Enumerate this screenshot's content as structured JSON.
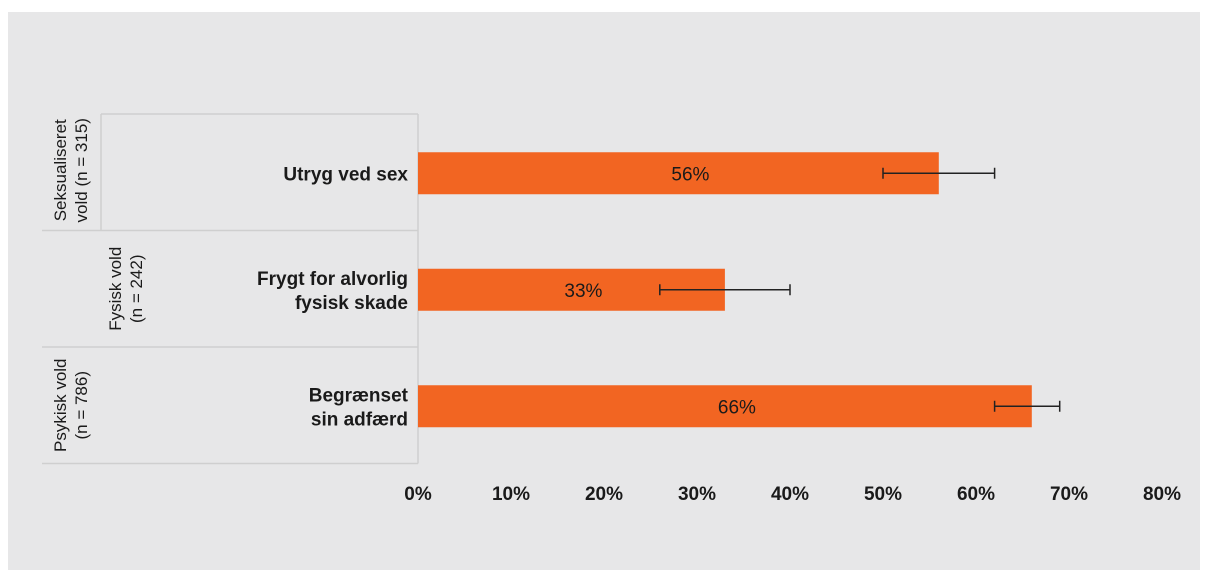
{
  "chart_data": {
    "type": "bar",
    "orientation": "horizontal",
    "categories": [
      "Utryg ved sex",
      "Frygt for alvorlig fysisk skade",
      "Begrænset sin adfærd"
    ],
    "category_lines": [
      [
        "Utryg ved sex"
      ],
      [
        "Frygt for alvorlig",
        "fysisk skade"
      ],
      [
        "Begrænset",
        "sin adfærd"
      ]
    ],
    "groups": [
      {
        "lines": [
          "Seksualiseret",
          "vold (n = 315)"
        ]
      },
      {
        "lines": [
          "Fysisk vold",
          "(n = 242)"
        ]
      },
      {
        "lines": [
          "Psykisk vold",
          "(n = 786)"
        ]
      }
    ],
    "values": [
      56,
      33,
      66
    ],
    "value_labels": [
      "56%",
      "33%",
      "66%"
    ],
    "error_low": [
      50,
      26,
      62
    ],
    "error_high": [
      62,
      40,
      69
    ],
    "xlim": [
      0,
      80
    ],
    "xticks": [
      0,
      10,
      20,
      30,
      40,
      50,
      60,
      70,
      80
    ],
    "xtick_labels": [
      "0%",
      "10%",
      "20%",
      "30%",
      "40%",
      "50%",
      "60%",
      "70%",
      "80%"
    ],
    "bar_color": "#f26522",
    "background_color": "#e7e7e8",
    "grid": false,
    "legend": "none"
  }
}
